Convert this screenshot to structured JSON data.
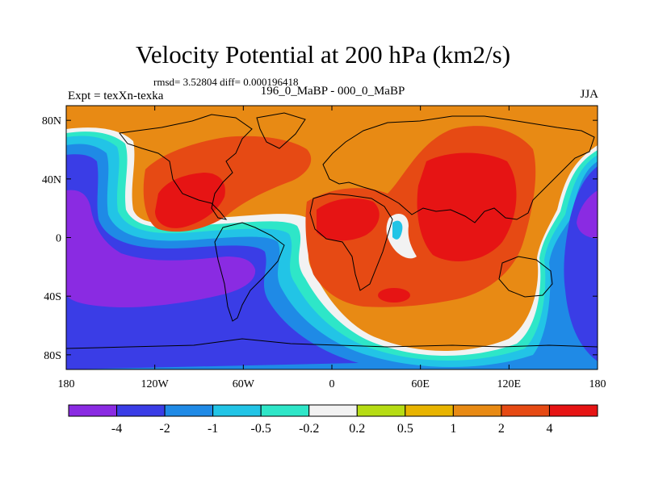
{
  "chart_data": {
    "type": "filled-contour-map",
    "title": "Velocity Potential at 200 hPa (km2/s)",
    "stats_text": "rmsd= 3.52804 diff= 0.000196418",
    "left_label": "Expt = texXn-texka",
    "center_label": "196_0_MaBP - 000_0_MaBP",
    "right_label": "JJA",
    "x_ticks": [
      "180",
      "120W",
      "60W",
      "0",
      "60E",
      "120E",
      "180"
    ],
    "y_ticks": [
      "80N",
      "40N",
      "0",
      "40S",
      "80S"
    ],
    "xlim": [
      -180,
      180
    ],
    "ylim": [
      -90,
      90
    ],
    "colorbar": {
      "levels": [
        "-4",
        "-2",
        "-1",
        "-0.5",
        "-0.2",
        "0.2",
        "0.5",
        "1",
        "2",
        "4"
      ],
      "colors": [
        "#8a2be2",
        "#3a3de6",
        "#1f8ae6",
        "#22c4e6",
        "#2ee6c8",
        "#f2f2f2",
        "#b6dc14",
        "#e8b400",
        "#e88a14",
        "#e64a14",
        "#e61414"
      ]
    }
  }
}
